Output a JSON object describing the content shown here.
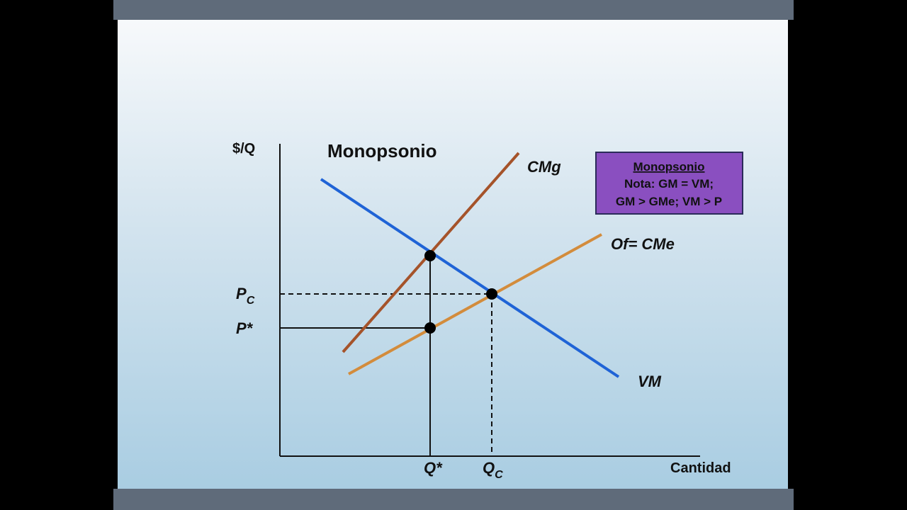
{
  "axes": {
    "y_label": "$/Q",
    "x_label": "Cantidad"
  },
  "title": "Monopsonio",
  "curves": {
    "cmg": "CMg",
    "supply": "Of= CMe",
    "vm": "VM"
  },
  "prices": {
    "competitive": {
      "main": "P",
      "sub": "C"
    },
    "monopsony": "P*"
  },
  "quantities": {
    "monopsony": "Q*",
    "competitive": {
      "main": "Q",
      "sub": "C"
    }
  },
  "note": {
    "title": "Monopsonio",
    "line1": "Nota: GM = VM;",
    "line2": "GM > GMe; VM > P"
  }
}
